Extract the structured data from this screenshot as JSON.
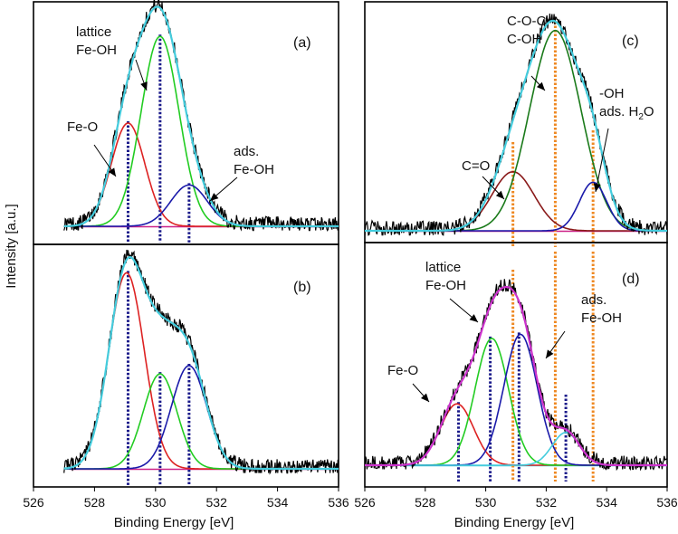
{
  "figure": {
    "ylabel": "Intensity [a.u.]",
    "xlabel": "Binding Energy [eV]",
    "background": "#ffffff"
  },
  "chart_data": [
    {
      "id": "a",
      "type": "line",
      "panel_label": "(a)",
      "xlim": [
        526,
        536
      ],
      "x_reversed": false,
      "xticks": [],
      "components": [
        {
          "label": "Fe-O",
          "center": 529.1,
          "height": 0.5,
          "sigma": 0.55,
          "color": "#dd2222"
        },
        {
          "label": "lattice Fe-OH",
          "center": 530.15,
          "height": 0.92,
          "sigma": 0.62,
          "color": "#22cc22"
        },
        {
          "label": "ads. Fe-OH",
          "center": 531.1,
          "height": 0.2,
          "sigma": 0.6,
          "color": "#1a1aaa"
        }
      ],
      "envelope_color": "#44ccdd",
      "raw_color": "#000000",
      "baseline_color": "#cc2288",
      "reference_lines": [
        {
          "x": 529.1,
          "color": "#1a1a8a"
        },
        {
          "x": 530.15,
          "color": "#1a1a8a"
        },
        {
          "x": 531.1,
          "color": "#1a1a8a"
        }
      ],
      "annotations": [
        {
          "text": "lattice",
          "lines": [
            "lattice",
            "Fe-OH"
          ]
        },
        {
          "text": "Fe-O",
          "lines": [
            "Fe-O"
          ]
        },
        {
          "text": "ads. Fe-OH",
          "lines": [
            "ads.",
            "Fe-OH"
          ]
        }
      ]
    },
    {
      "id": "b",
      "type": "line",
      "panel_label": "(b)",
      "xlim": [
        526,
        536
      ],
      "x_reversed": false,
      "xticks": [
        526,
        528,
        530,
        532,
        534,
        536
      ],
      "components": [
        {
          "label": "Fe-O",
          "center": 529.05,
          "height": 0.95,
          "sigma": 0.58,
          "color": "#dd2222"
        },
        {
          "label": "lattice Fe-OH",
          "center": 530.15,
          "height": 0.46,
          "sigma": 0.55,
          "color": "#22cc22"
        },
        {
          "label": "ads. Fe-OH",
          "center": 531.1,
          "height": 0.5,
          "sigma": 0.58,
          "color": "#1a1aaa"
        }
      ],
      "envelope_color": "#44ccdd",
      "raw_color": "#000000",
      "baseline_color": "#cc2288",
      "reference_lines": [
        {
          "x": 529.1,
          "color": "#1a1a8a"
        },
        {
          "x": 530.15,
          "color": "#1a1a8a"
        },
        {
          "x": 531.1,
          "color": "#1a1a8a"
        }
      ],
      "annotations": []
    },
    {
      "id": "c",
      "type": "line",
      "panel_label": "(c)",
      "xlim": [
        526,
        536
      ],
      "x_reversed": false,
      "xticks": [],
      "components": [
        {
          "label": "C=O",
          "center": 530.9,
          "height": 0.28,
          "sigma": 0.7,
          "color": "#8a1a1a"
        },
        {
          "label": "C-O-C C-OH",
          "center": 532.3,
          "height": 0.95,
          "sigma": 0.85,
          "color": "#1a7a1a"
        },
        {
          "label": "-OH ads. H2O",
          "center": 533.55,
          "height": 0.23,
          "sigma": 0.45,
          "color": "#1a1aaa"
        }
      ],
      "envelope_color": "#44ccdd",
      "raw_color": "#000000",
      "baseline_color": "#cc2288",
      "reference_lines": [
        {
          "x": 530.9,
          "color": "#ee8822"
        },
        {
          "x": 532.3,
          "color": "#ee8822"
        },
        {
          "x": 533.55,
          "color": "#ee8822"
        }
      ],
      "annotations": [
        {
          "text": "C-O-C",
          "lines": [
            "C-O-C",
            "C-OH"
          ]
        },
        {
          "text": "C=O",
          "lines": [
            "C=O"
          ]
        },
        {
          "text": "-OH ads. H2O",
          "lines": [
            "-OH",
            "ads. H2O"
          ]
        }
      ]
    },
    {
      "id": "d",
      "type": "line",
      "panel_label": "(d)",
      "xlim": [
        526,
        536
      ],
      "x_reversed": false,
      "xticks": [
        526,
        528,
        530,
        532,
        534,
        536
      ],
      "components": [
        {
          "label": "Fe-O",
          "center": 529.05,
          "height": 0.3,
          "sigma": 0.55,
          "color": "#dd2222"
        },
        {
          "label": "lattice Fe-OH",
          "center": 530.2,
          "height": 0.62,
          "sigma": 0.55,
          "color": "#22cc22"
        },
        {
          "label": "ads. Fe-OH",
          "center": 531.15,
          "height": 0.64,
          "sigma": 0.55,
          "color": "#1a1aaa"
        },
        {
          "label": "",
          "center": 532.65,
          "height": 0.16,
          "sigma": 0.45,
          "color": "#44ccdd"
        }
      ],
      "envelope_color": "#cc33cc",
      "raw_color": "#000000",
      "baseline_color": "#44ccdd",
      "reference_lines": [
        {
          "x": 529.1,
          "color": "#1a1a8a"
        },
        {
          "x": 530.15,
          "color": "#1a1a8a"
        },
        {
          "x": 531.1,
          "color": "#1a1a8a"
        },
        {
          "x": 530.9,
          "color": "#ee8822"
        },
        {
          "x": 532.3,
          "color": "#ee8822"
        },
        {
          "x": 533.55,
          "color": "#ee8822"
        },
        {
          "x": 532.65,
          "color": "#1a1a8a"
        }
      ],
      "annotations": [
        {
          "text": "lattice Fe-OH",
          "lines": [
            "lattice",
            "Fe-OH"
          ]
        },
        {
          "text": "ads. Fe-OH",
          "lines": [
            "ads.",
            "Fe-OH"
          ]
        },
        {
          "text": "Fe-O",
          "lines": [
            "Fe-O"
          ]
        }
      ]
    }
  ]
}
